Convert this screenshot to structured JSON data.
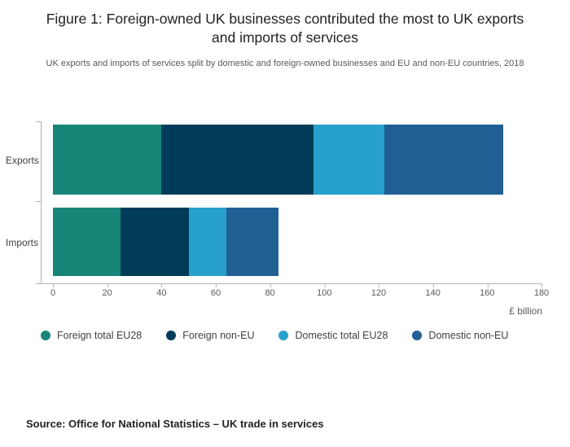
{
  "header": {
    "title": "Figure 1: Foreign-owned UK businesses contributed the most to UK exports and imports of services",
    "subtitle": "UK exports and imports of services split by domestic and foreign-owned businesses and EU and non-EU countries, 2018"
  },
  "chart_data": {
    "type": "bar",
    "orientation": "horizontal",
    "stacked": true,
    "title": "Figure 1: Foreign-owned UK businesses contributed the most to UK exports and imports of services",
    "xlabel": "£ billion",
    "ylabel": "",
    "xlim": [
      0,
      180
    ],
    "xmax": 180,
    "xticks": [
      0,
      20,
      40,
      60,
      80,
      100,
      120,
      140,
      160,
      180
    ],
    "grid": false,
    "legend_position": "bottom",
    "rows": [
      {
        "key": "exports",
        "label": "Exports",
        "values": [
          40,
          56,
          26,
          44
        ],
        "total": 166
      },
      {
        "key": "imports",
        "label": "Imports",
        "values": [
          25,
          25,
          14,
          19
        ],
        "total": 83
      }
    ],
    "series": [
      {
        "key": "foreign-total-eu28",
        "name": "Foreign total EU28",
        "color": "#178578"
      },
      {
        "key": "foreign-non-eu",
        "name": "Foreign non-EU",
        "color": "#003C57"
      },
      {
        "key": "domestic-total-eu28",
        "name": "Domestic total EU28",
        "color": "#27A0CC"
      },
      {
        "key": "domestic-non-eu",
        "name": "Domestic non-EU",
        "color": "#206095"
      }
    ]
  },
  "footer": {
    "source": "Source: Office for National Statistics – UK trade in services"
  }
}
